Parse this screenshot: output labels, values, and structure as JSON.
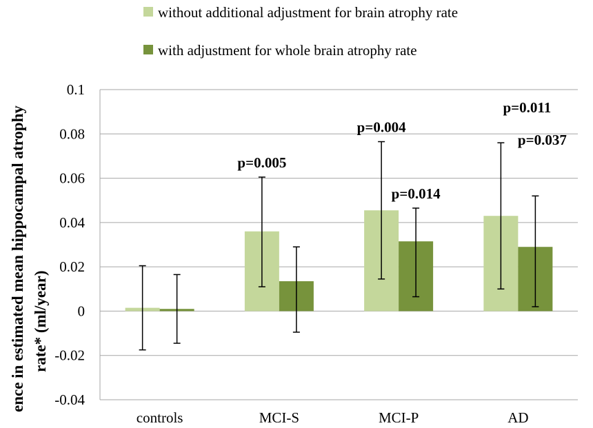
{
  "chart_data": {
    "type": "bar",
    "categories": [
      "controls",
      "MCI-S",
      "MCI-P",
      "AD"
    ],
    "series": [
      {
        "name": "without additional adjustment for brain atrophy rate",
        "color": "#c4d79b",
        "values": [
          0.0015,
          0.036,
          0.0455,
          0.043
        ],
        "error_low": [
          -0.0175,
          0.011,
          0.0145,
          0.01
        ],
        "error_high": [
          0.0205,
          0.0605,
          0.0765,
          0.076
        ]
      },
      {
        "name": "with adjustment for whole brain atrophy rate",
        "color": "#77933c",
        "values": [
          0.001,
          0.0135,
          0.0315,
          0.029
        ],
        "error_low": [
          -0.0145,
          -0.0095,
          0.0065,
          0.002
        ],
        "error_high": [
          0.0165,
          0.029,
          0.0465,
          0.052
        ]
      }
    ],
    "ylabel_lines": [
      "ence in estimated mean hippocampal atrophy",
      "rate* (ml/year)"
    ],
    "ylim": [
      -0.04,
      0.1
    ],
    "yticks": [
      "-0.04",
      "-0.02",
      "0",
      "0.02",
      "0.04",
      "0.06",
      "0.08",
      "0.1"
    ],
    "grid": true,
    "legend_position": "top",
    "annotations": [
      {
        "text": "p=0.005",
        "category": "MCI-S",
        "series": 0
      },
      {
        "text": "p=0.004",
        "category": "MCI-P",
        "series": 0
      },
      {
        "text": "p=0.014",
        "category": "MCI-P",
        "series": 1
      },
      {
        "text": "p=0.011",
        "category": "AD",
        "series": 0
      },
      {
        "text": "p=0.037",
        "category": "AD",
        "series": 1
      }
    ]
  }
}
